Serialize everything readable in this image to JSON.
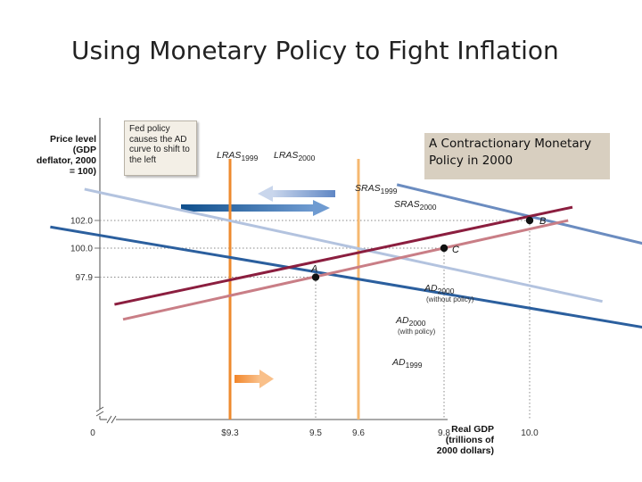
{
  "slide": {
    "title": "Using Monetary Policy to Fight Inflation"
  },
  "callout": {
    "text": "A Contractionary Monetary Policy in 2000"
  },
  "fed_box": {
    "text": "Fed policy causes the AD curve to shift to the left"
  },
  "chart_data": {
    "type": "line",
    "title": "",
    "ylabel": "Price level (GDP deflator, 2000 = 100)",
    "xlabel": "Real GDP (trillions of 2000 dollars)",
    "origin_label": "0",
    "y_ticks": [
      {
        "value": 97.9,
        "label": "97.9"
      },
      {
        "value": 100.0,
        "label": "100.0"
      },
      {
        "value": 102.0,
        "label": "102.0"
      }
    ],
    "x_ticks": [
      {
        "value": 9.3,
        "label": "$9.3"
      },
      {
        "value": 9.5,
        "label": "9.5"
      },
      {
        "value": 9.6,
        "label": "9.6"
      },
      {
        "value": 9.8,
        "label": "9.8"
      },
      {
        "value": 10.0,
        "label": "10.0"
      }
    ],
    "curves": [
      {
        "id": "lras1999",
        "name": "LRAS1999",
        "kind": "vertical",
        "x": 9.3,
        "color": "#ee8a2e"
      },
      {
        "id": "lras2000",
        "name": "LRAS2000",
        "kind": "vertical",
        "x": 9.6,
        "color": "#f6b870"
      },
      {
        "id": "ad1999",
        "name": "AD1999",
        "color": "#2b5f9e",
        "points": [
          [
            8.88,
            101.53
          ],
          [
            10.36,
            93.78
          ]
        ]
      },
      {
        "id": "ad2000_with",
        "name": "AD2000",
        "note": "(with policy)",
        "color": "#b3c3df",
        "points": [
          [
            8.96,
            104.26
          ],
          [
            10.17,
            96.15
          ]
        ]
      },
      {
        "id": "ad2000_without",
        "name": "AD2000",
        "note": "(without policy)",
        "color": "#6b8cc0",
        "points": [
          [
            9.69,
            104.59
          ],
          [
            10.56,
            98.15
          ]
        ]
      },
      {
        "id": "sras1999",
        "name": "SRAS1999",
        "color": "#8b1e3f",
        "points": [
          [
            9.03,
            95.93
          ],
          [
            10.1,
            102.96
          ]
        ]
      },
      {
        "id": "sras2000",
        "name": "SRAS2000",
        "color": "#c97e86",
        "points": [
          [
            9.05,
            94.85
          ],
          [
            10.09,
            102.0
          ]
        ]
      }
    ],
    "points": [
      {
        "label": "A",
        "x": 9.5,
        "y": 97.9
      },
      {
        "label": "B",
        "x": 10.0,
        "y": 102.0
      },
      {
        "label": "C",
        "x": 9.8,
        "y": 100.0
      }
    ]
  }
}
